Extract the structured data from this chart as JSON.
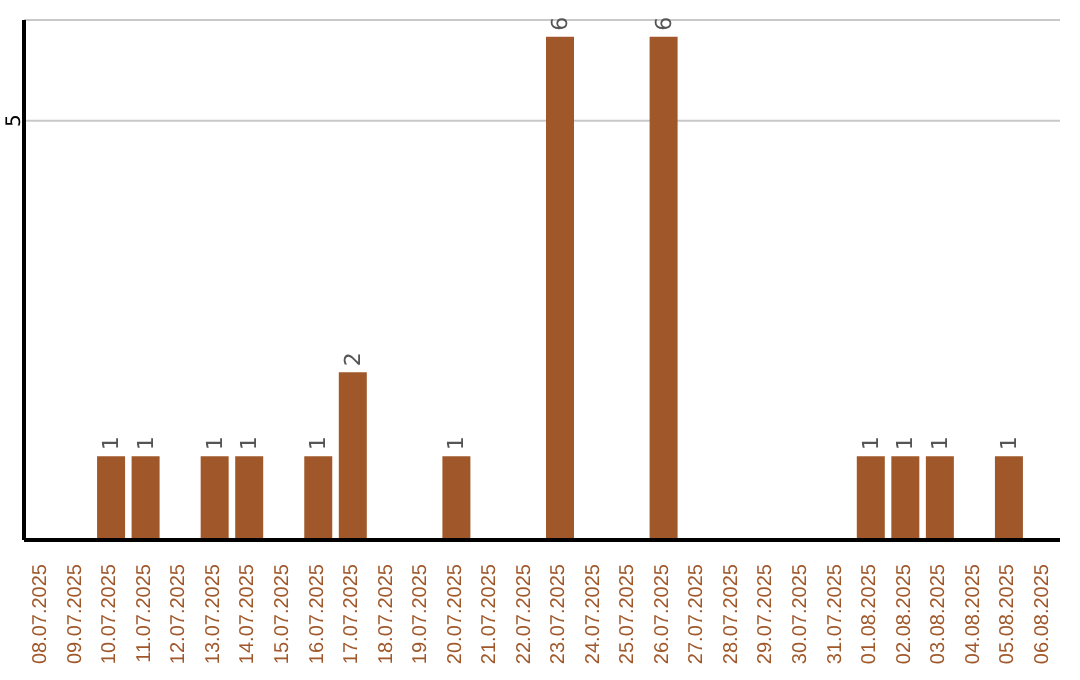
{
  "chart_data": {
    "type": "bar",
    "categories": [
      "08.07.2025",
      "09.07.2025",
      "10.07.2025",
      "11.07.2025",
      "12.07.2025",
      "13.07.2025",
      "14.07.2025",
      "15.07.2025",
      "16.07.2025",
      "17.07.2025",
      "18.07.2025",
      "19.07.2025",
      "20.07.2025",
      "21.07.2025",
      "22.07.2025",
      "23.07.2025",
      "24.07.2025",
      "25.07.2025",
      "26.07.2025",
      "27.07.2025",
      "28.07.2025",
      "29.07.2025",
      "30.07.2025",
      "31.07.2025",
      "01.08.2025",
      "02.08.2025",
      "03.08.2025",
      "04.08.2025",
      "05.08.2025",
      "06.08.2025"
    ],
    "values": [
      0,
      0,
      1,
      1,
      0,
      1,
      1,
      0,
      1,
      2,
      0,
      0,
      1,
      0,
      0,
      6,
      0,
      0,
      6,
      0,
      0,
      0,
      0,
      0,
      1,
      1,
      1,
      0,
      1,
      0
    ],
    "value_labels": [
      null,
      null,
      "1",
      "1",
      null,
      "1",
      "1",
      null,
      "1",
      "2",
      null,
      null,
      "1",
      null,
      null,
      "6",
      null,
      null,
      "6",
      null,
      null,
      null,
      null,
      null,
      "1",
      "1",
      "1",
      null,
      "1",
      null
    ],
    "color": "#a0582a",
    "ylim": [
      0,
      6.2
    ],
    "yticks": [
      5
    ],
    "grid": "y",
    "legend": false
  }
}
